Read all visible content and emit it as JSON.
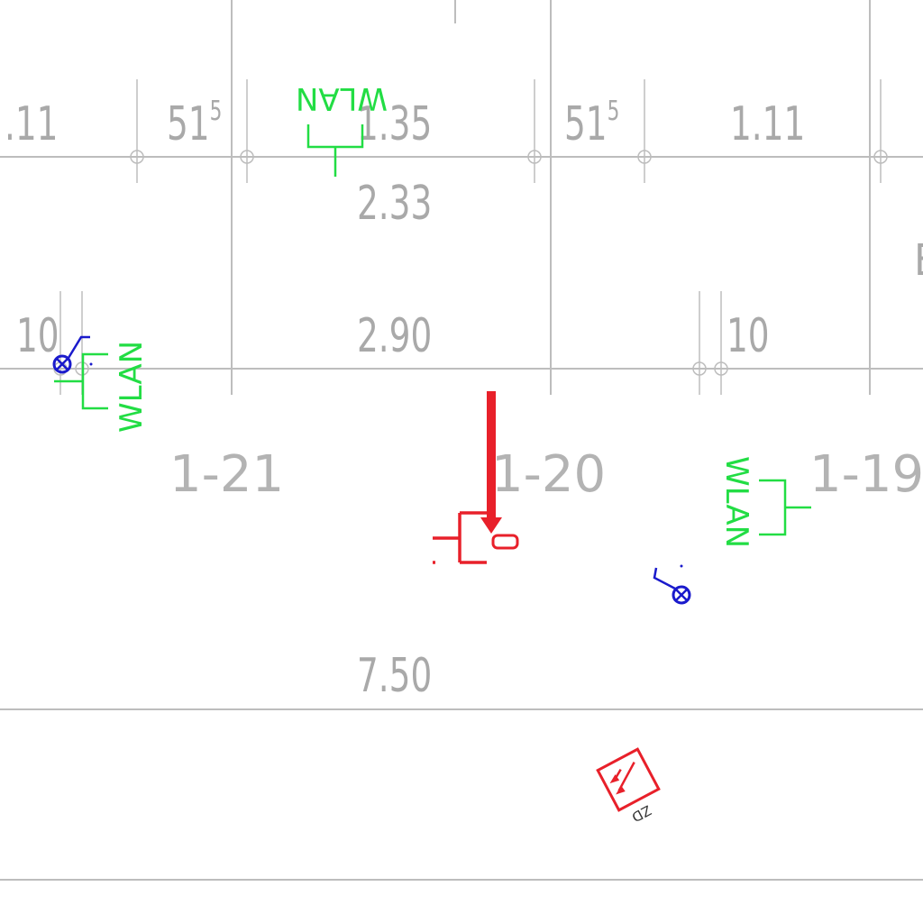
{
  "dimensions": {
    "d_11_left": ".11",
    "d_515_left_base": "51",
    "d_515_left_sup": "5",
    "d_135": "1.35",
    "d_515_right_base": "51",
    "d_515_right_sup": "5",
    "d_111": "1.11",
    "d_233": "2.33",
    "d_10_left": "10",
    "d_290": "2.90",
    "d_10_right": "10",
    "d_750": "7.50",
    "edge_letter": "E"
  },
  "rooms": {
    "room_121": "1-21",
    "room_120": "1-20",
    "room_119": "1-19"
  },
  "wlan": {
    "top": "WLAN",
    "left": "WLAN",
    "right": "WLAN"
  },
  "symbols": {
    "device_tag": "ZD"
  },
  "colors": {
    "dimension_gray": "#a9a9a9",
    "wlan_green": "#22dd44",
    "fire_red": "#e8202a",
    "socket_blue": "#1a1acc"
  }
}
